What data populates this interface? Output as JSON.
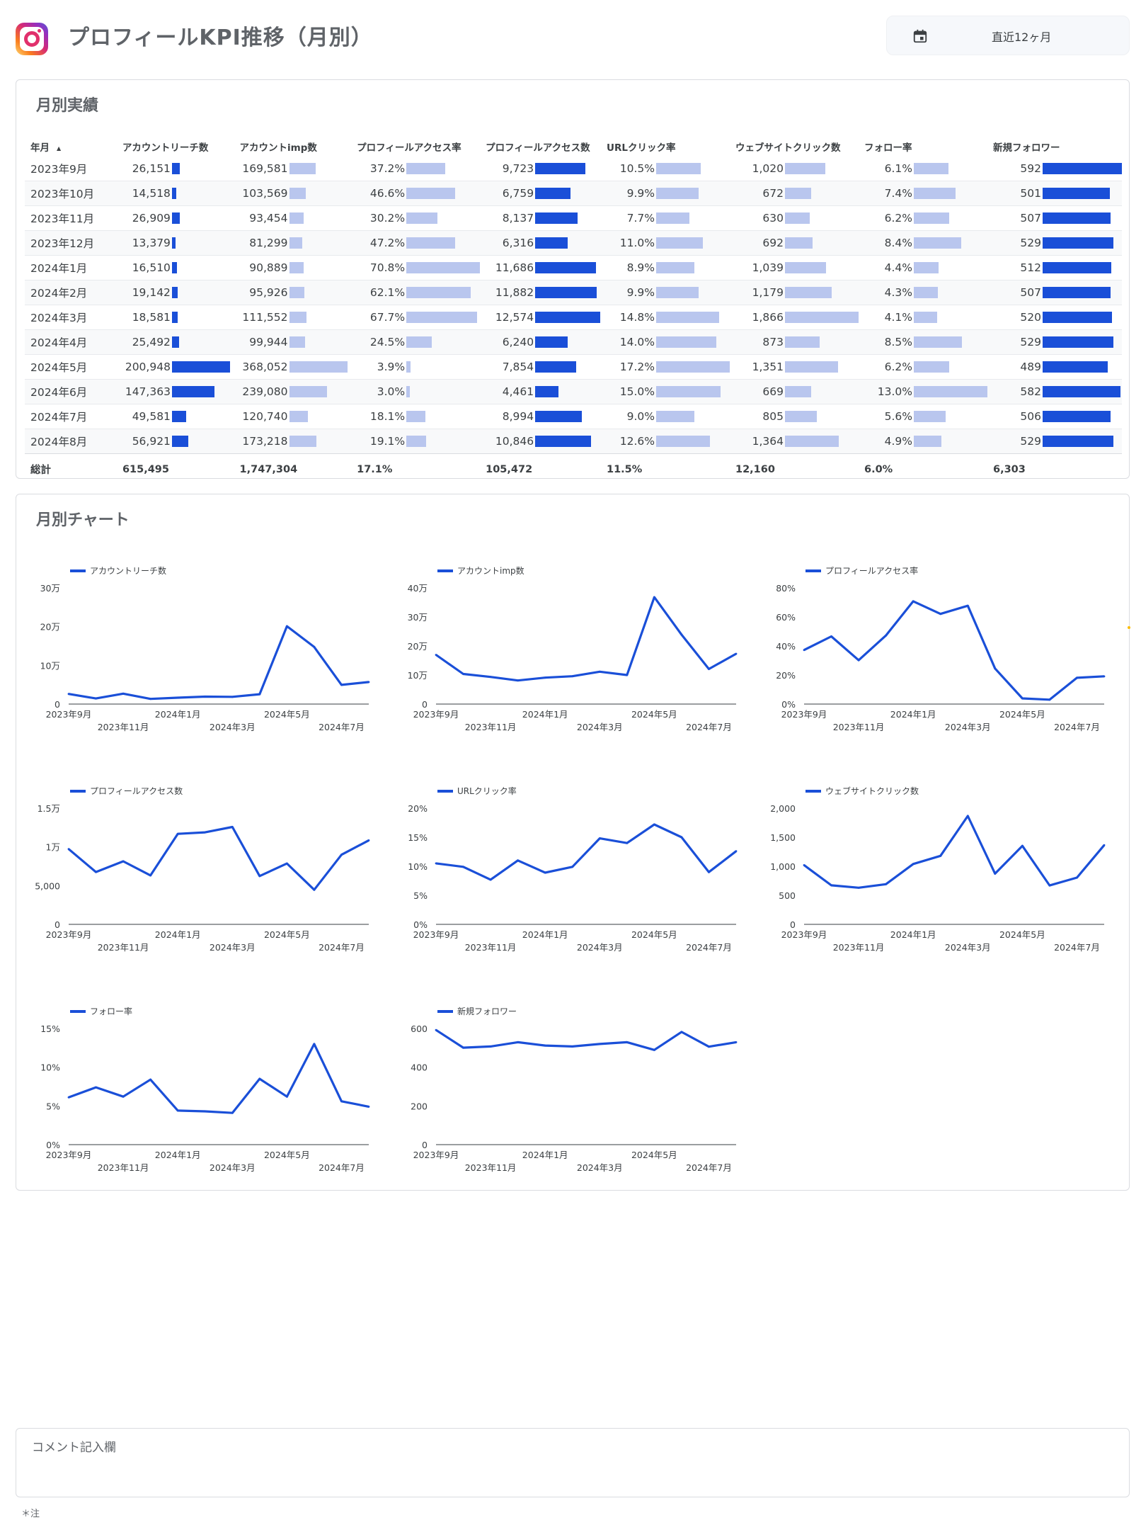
{
  "header": {
    "title": "プロフィールKPI推移（月別）",
    "date_range": "直近12ヶ月"
  },
  "table_section": {
    "title": "月別実績",
    "columns": [
      "年月",
      "アカウントリーチ数",
      "アカウントimp数",
      "プロフィールアクセス率",
      "プロフィールアクセス数",
      "URLクリック率",
      "ウェブサイトクリック数",
      "フォロー率",
      "新規フォロワー"
    ],
    "sort_indicator": "▲",
    "rows": [
      {
        "month": "2023年9月",
        "reach": "26,151",
        "imp": "169,581",
        "access_rate": "37.2%",
        "access": "9,723",
        "url_rate": "10.5%",
        "web": "1,020",
        "follow_rate": "6.1%",
        "new_followers": "592"
      },
      {
        "month": "2023年10月",
        "reach": "14,518",
        "imp": "103,569",
        "access_rate": "46.6%",
        "access": "6,759",
        "url_rate": "9.9%",
        "web": "672",
        "follow_rate": "7.4%",
        "new_followers": "501"
      },
      {
        "month": "2023年11月",
        "reach": "26,909",
        "imp": "93,454",
        "access_rate": "30.2%",
        "access": "8,137",
        "url_rate": "7.7%",
        "web": "630",
        "follow_rate": "6.2%",
        "new_followers": "507"
      },
      {
        "month": "2023年12月",
        "reach": "13,379",
        "imp": "81,299",
        "access_rate": "47.2%",
        "access": "6,316",
        "url_rate": "11.0%",
        "web": "692",
        "follow_rate": "8.4%",
        "new_followers": "529"
      },
      {
        "month": "2024年1月",
        "reach": "16,510",
        "imp": "90,889",
        "access_rate": "70.8%",
        "access": "11,686",
        "url_rate": "8.9%",
        "web": "1,039",
        "follow_rate": "4.4%",
        "new_followers": "512"
      },
      {
        "month": "2024年2月",
        "reach": "19,142",
        "imp": "95,926",
        "access_rate": "62.1%",
        "access": "11,882",
        "url_rate": "9.9%",
        "web": "1,179",
        "follow_rate": "4.3%",
        "new_followers": "507"
      },
      {
        "month": "2024年3月",
        "reach": "18,581",
        "imp": "111,552",
        "access_rate": "67.7%",
        "access": "12,574",
        "url_rate": "14.8%",
        "web": "1,866",
        "follow_rate": "4.1%",
        "new_followers": "520"
      },
      {
        "month": "2024年4月",
        "reach": "25,492",
        "imp": "99,944",
        "access_rate": "24.5%",
        "access": "6,240",
        "url_rate": "14.0%",
        "web": "873",
        "follow_rate": "8.5%",
        "new_followers": "529"
      },
      {
        "month": "2024年5月",
        "reach": "200,948",
        "imp": "368,052",
        "access_rate": "3.9%",
        "access": "7,854",
        "url_rate": "17.2%",
        "web": "1,351",
        "follow_rate": "6.2%",
        "new_followers": "489"
      },
      {
        "month": "2024年6月",
        "reach": "147,363",
        "imp": "239,080",
        "access_rate": "3.0%",
        "access": "4,461",
        "url_rate": "15.0%",
        "web": "669",
        "follow_rate": "13.0%",
        "new_followers": "582"
      },
      {
        "month": "2024年7月",
        "reach": "49,581",
        "imp": "120,740",
        "access_rate": "18.1%",
        "access": "8,994",
        "url_rate": "9.0%",
        "web": "805",
        "follow_rate": "5.6%",
        "new_followers": "506"
      },
      {
        "month": "2024年8月",
        "reach": "56,921",
        "imp": "173,218",
        "access_rate": "19.1%",
        "access": "10,846",
        "url_rate": "12.6%",
        "web": "1,364",
        "follow_rate": "4.9%",
        "new_followers": "529"
      }
    ],
    "totals": {
      "label": "総計",
      "reach": "615,495",
      "imp": "1,747,304",
      "access_rate": "17.1%",
      "access": "105,472",
      "url_rate": "11.5%",
      "web": "12,160",
      "follow_rate": "6.0%",
      "new_followers": "6,303"
    }
  },
  "chart_section": {
    "title": "月別チャート"
  },
  "chart_data": [
    {
      "type": "line",
      "series": [
        {
          "name": "アカウントリーチ数",
          "values": [
            26151,
            14518,
            26909,
            13379,
            16510,
            19142,
            18581,
            25492,
            200948,
            147363,
            49581,
            56921
          ]
        }
      ],
      "x": [
        "2023年9月",
        "2023年10月",
        "2023年11月",
        "2023年12月",
        "2024年1月",
        "2024年2月",
        "2024年3月",
        "2024年4月",
        "2024年5月",
        "2024年6月",
        "2024年7月",
        "2024年8月"
      ],
      "ylim": [
        0,
        300000
      ],
      "yticks": [
        "0",
        "10万",
        "20万",
        "30万"
      ],
      "xticks_upper": [
        "2023年9月",
        "2024年1月",
        "2024年5月"
      ],
      "xticks_lower": [
        "2023年11月",
        "2024年3月",
        "2024年7月"
      ],
      "color": "#1a4fd8"
    },
    {
      "type": "line",
      "series": [
        {
          "name": "アカウントimp数",
          "values": [
            169581,
            103569,
            93454,
            81299,
            90889,
            95926,
            111552,
            99944,
            368052,
            239080,
            120740,
            173218
          ]
        }
      ],
      "x": [
        "2023年9月",
        "2023年10月",
        "2023年11月",
        "2023年12月",
        "2024年1月",
        "2024年2月",
        "2024年3月",
        "2024年4月",
        "2024年5月",
        "2024年6月",
        "2024年7月",
        "2024年8月"
      ],
      "ylim": [
        0,
        400000
      ],
      "yticks": [
        "0",
        "10万",
        "20万",
        "30万",
        "40万"
      ],
      "xticks_upper": [
        "2023年9月",
        "2024年1月",
        "2024年5月"
      ],
      "xticks_lower": [
        "2023年11月",
        "2024年3月",
        "2024年7月"
      ],
      "color": "#1a4fd8"
    },
    {
      "type": "line",
      "series": [
        {
          "name": "プロフィールアクセス率",
          "values": [
            37.2,
            46.6,
            30.2,
            47.2,
            70.8,
            62.1,
            67.7,
            24.5,
            3.9,
            3.0,
            18.1,
            19.1
          ]
        }
      ],
      "x": [
        "2023年9月",
        "2023年10月",
        "2023年11月",
        "2023年12月",
        "2024年1月",
        "2024年2月",
        "2024年3月",
        "2024年4月",
        "2024年5月",
        "2024年6月",
        "2024年7月",
        "2024年8月"
      ],
      "ylim": [
        0,
        80
      ],
      "yticks": [
        "0%",
        "20%",
        "40%",
        "60%",
        "80%"
      ],
      "xticks_upper": [
        "2023年9月",
        "2024年1月",
        "2024年5月"
      ],
      "xticks_lower": [
        "2023年11月",
        "2024年3月",
        "2024年7月"
      ],
      "color": "#1a4fd8"
    },
    {
      "type": "line",
      "series": [
        {
          "name": "プロフィールアクセス数",
          "values": [
            9723,
            6759,
            8137,
            6316,
            11686,
            11882,
            12574,
            6240,
            7854,
            4461,
            8994,
            10846
          ]
        }
      ],
      "x": [
        "2023年9月",
        "2023年10月",
        "2023年11月",
        "2023年12月",
        "2024年1月",
        "2024年2月",
        "2024年3月",
        "2024年4月",
        "2024年5月",
        "2024年6月",
        "2024年7月",
        "2024年8月"
      ],
      "ylim": [
        0,
        15000
      ],
      "yticks": [
        "0",
        "5,000",
        "1万",
        "1.5万"
      ],
      "xticks_upper": [
        "2023年9月",
        "2024年1月",
        "2024年5月"
      ],
      "xticks_lower": [
        "2023年11月",
        "2024年3月",
        "2024年7月"
      ],
      "color": "#1a4fd8"
    },
    {
      "type": "line",
      "series": [
        {
          "name": "URLクリック率",
          "values": [
            10.5,
            9.9,
            7.7,
            11.0,
            8.9,
            9.9,
            14.8,
            14.0,
            17.2,
            15.0,
            9.0,
            12.6
          ]
        }
      ],
      "x": [
        "2023年9月",
        "2023年10月",
        "2023年11月",
        "2023年12月",
        "2024年1月",
        "2024年2月",
        "2024年3月",
        "2024年4月",
        "2024年5月",
        "2024年6月",
        "2024年7月",
        "2024年8月"
      ],
      "ylim": [
        0,
        20
      ],
      "yticks": [
        "0%",
        "5%",
        "10%",
        "15%",
        "20%"
      ],
      "xticks_upper": [
        "2023年9月",
        "2024年1月",
        "2024年5月"
      ],
      "xticks_lower": [
        "2023年11月",
        "2024年3月",
        "2024年7月"
      ],
      "color": "#1a4fd8"
    },
    {
      "type": "line",
      "series": [
        {
          "name": "ウェブサイトクリック数",
          "values": [
            1020,
            672,
            630,
            692,
            1039,
            1179,
            1866,
            873,
            1351,
            669,
            805,
            1364
          ]
        }
      ],
      "x": [
        "2023年9月",
        "2023年10月",
        "2023年11月",
        "2023年12月",
        "2024年1月",
        "2024年2月",
        "2024年3月",
        "2024年4月",
        "2024年5月",
        "2024年6月",
        "2024年7月",
        "2024年8月"
      ],
      "ylim": [
        0,
        2000
      ],
      "yticks": [
        "0",
        "500",
        "1,000",
        "1,500",
        "2,000"
      ],
      "xticks_upper": [
        "2023年9月",
        "2024年1月",
        "2024年5月"
      ],
      "xticks_lower": [
        "2023年11月",
        "2024年3月",
        "2024年7月"
      ],
      "color": "#1a4fd8"
    },
    {
      "type": "line",
      "series": [
        {
          "name": "フォロー率",
          "values": [
            6.1,
            7.4,
            6.2,
            8.4,
            4.4,
            4.3,
            4.1,
            8.5,
            6.2,
            13.0,
            5.6,
            4.9
          ]
        }
      ],
      "x": [
        "2023年9月",
        "2023年10月",
        "2023年11月",
        "2023年12月",
        "2024年1月",
        "2024年2月",
        "2024年3月",
        "2024年4月",
        "2024年5月",
        "2024年6月",
        "2024年7月",
        "2024年8月"
      ],
      "ylim": [
        0,
        15
      ],
      "yticks": [
        "0%",
        "5%",
        "10%",
        "15%"
      ],
      "xticks_upper": [
        "2023年9月",
        "2024年1月",
        "2024年5月"
      ],
      "xticks_lower": [
        "2023年11月",
        "2024年3月",
        "2024年7月"
      ],
      "color": "#1a4fd8"
    },
    {
      "type": "line",
      "series": [
        {
          "name": "新規フォロワー",
          "values": [
            592,
            501,
            507,
            529,
            512,
            507,
            520,
            529,
            489,
            582,
            506,
            529
          ]
        }
      ],
      "x": [
        "2023年9月",
        "2023年10月",
        "2023年11月",
        "2023年12月",
        "2024年1月",
        "2024年2月",
        "2024年3月",
        "2024年4月",
        "2024年5月",
        "2024年6月",
        "2024年7月",
        "2024年8月"
      ],
      "ylim": [
        0,
        600
      ],
      "yticks": [
        "0",
        "200",
        "400",
        "600"
      ],
      "xticks_upper": [
        "2023年9月",
        "2024年1月",
        "2024年5月"
      ],
      "xticks_lower": [
        "2023年11月",
        "2024年3月",
        "2024年7月"
      ],
      "color": "#1a4fd8"
    }
  ],
  "comment": {
    "label": "コメント記入欄"
  },
  "footnote": "＊注",
  "colors": {
    "bar_dark": "#1a4fd8",
    "bar_light": "#b9c6ee",
    "line": "#1a4fd8"
  },
  "icons": {
    "date_filter": "calendar-icon",
    "brand": "instagram-logo-icon"
  }
}
